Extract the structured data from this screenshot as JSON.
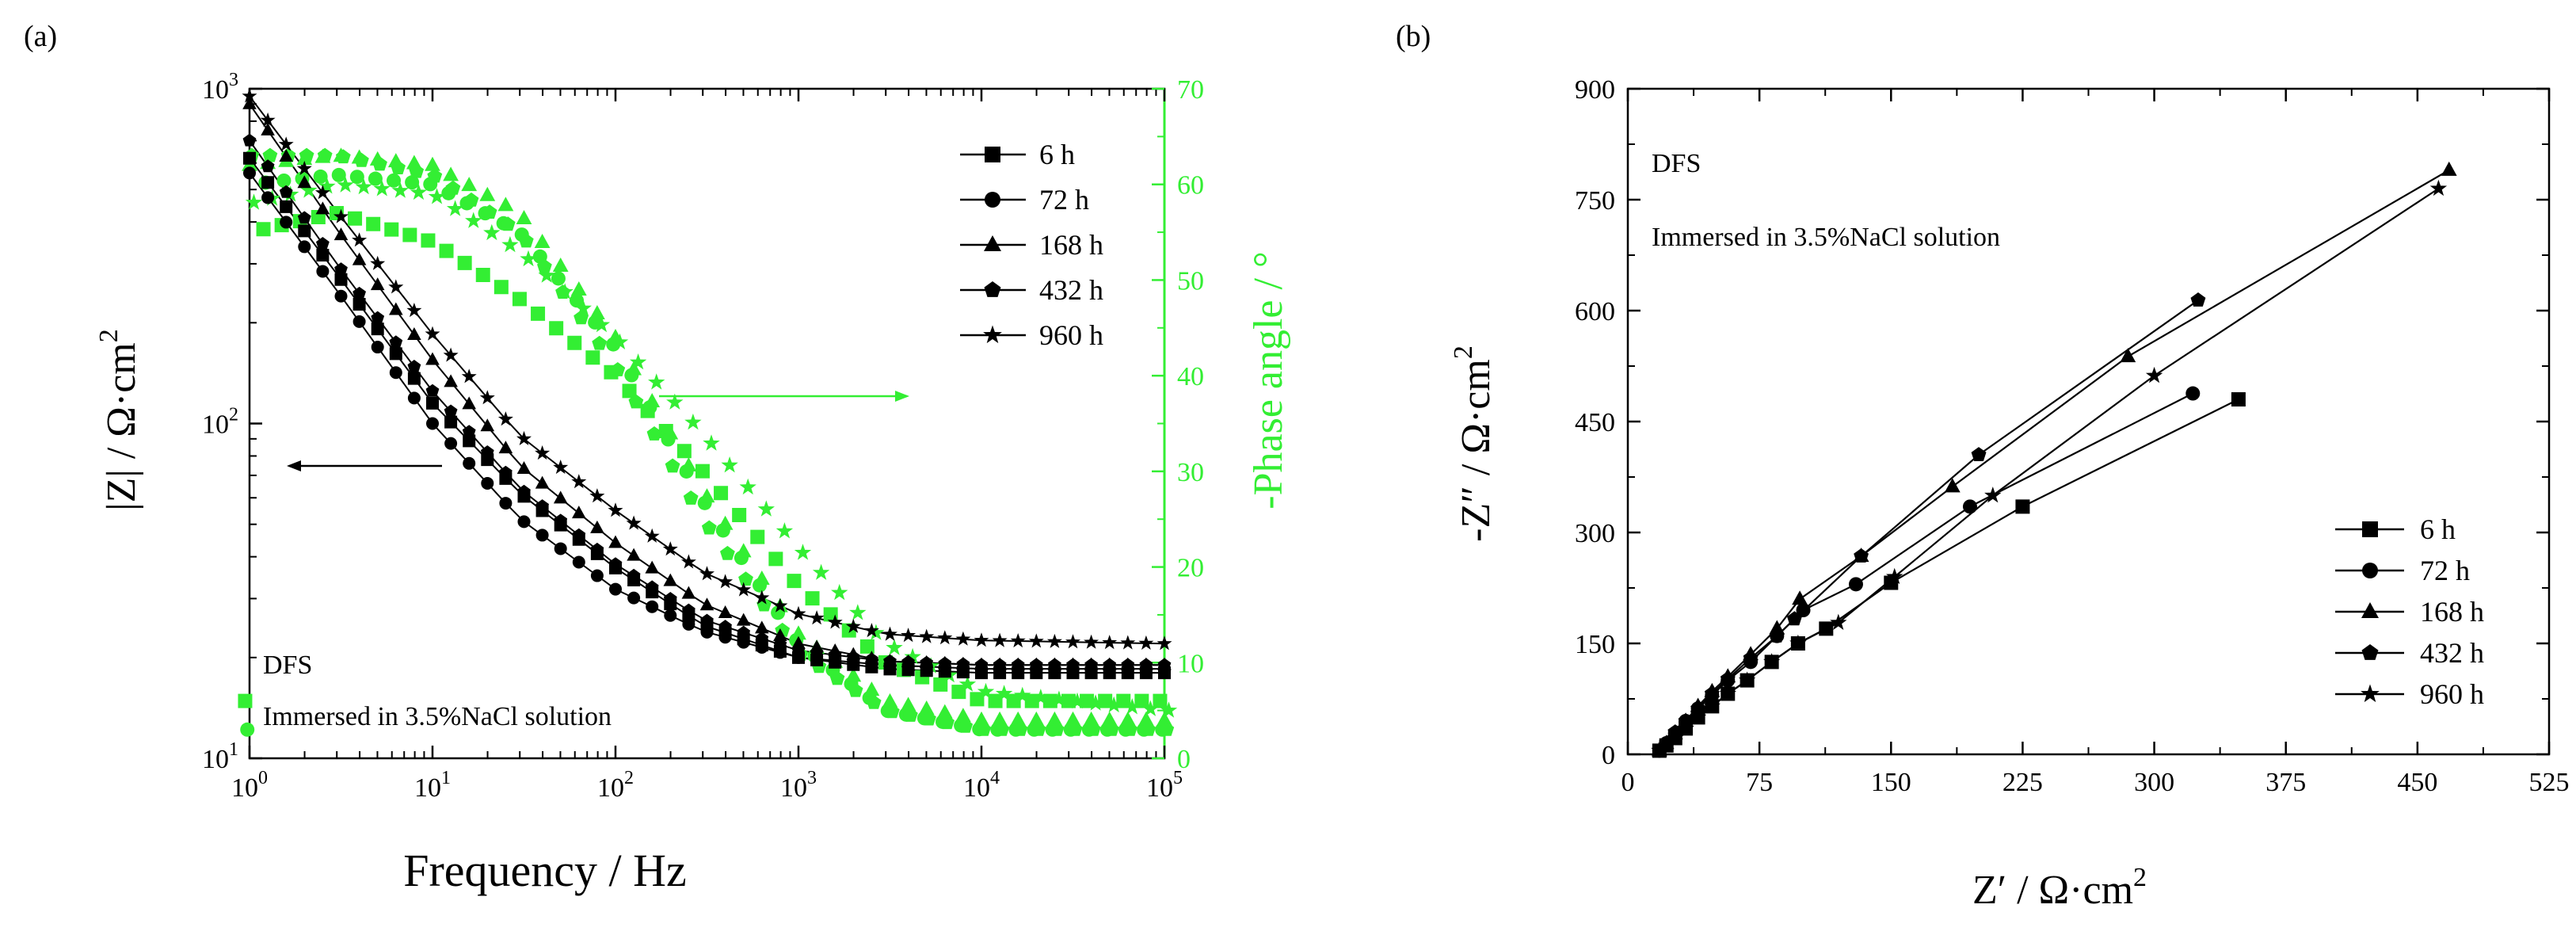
{
  "figure": {
    "background": "#ffffff"
  },
  "chart_data": [
    {
      "type": "scatter",
      "panel_label": "(a)",
      "xlabel": "Frequency / Hz",
      "ylabel_left": "|Z| / Ω·cm",
      "ylabel_left_sup": "2",
      "ylabel_right": "-Phase angle / °",
      "x_scale": "log",
      "xlim": [
        1,
        100000
      ],
      "x_ticks": [
        {
          "value": 1,
          "base": "10",
          "exp": "0"
        },
        {
          "value": 10,
          "base": "10",
          "exp": "1"
        },
        {
          "value": 100,
          "base": "10",
          "exp": "2"
        },
        {
          "value": 1000,
          "base": "10",
          "exp": "3"
        },
        {
          "value": 10000,
          "base": "10",
          "exp": "4"
        },
        {
          "value": 100000,
          "base": "10",
          "exp": "5"
        }
      ],
      "y_left_scale": "log",
      "y_left_lim": [
        10,
        1000
      ],
      "y_left_ticks": [
        {
          "value": 10,
          "base": "10",
          "exp": "1"
        },
        {
          "value": 100,
          "base": "10",
          "exp": "2"
        },
        {
          "value": 1000,
          "base": "10",
          "exp": "3"
        }
      ],
      "y_right_lim": [
        0,
        70
      ],
      "y_right_ticks": [
        "0",
        "10",
        "20",
        "30",
        "40",
        "50",
        "60",
        "70"
      ],
      "colors": {
        "modulus": "#000000",
        "phase": "#33ee33"
      },
      "annotations": [
        "DFS",
        "Immersed in 3.5%NaCl solution"
      ],
      "legend_position": "top-right",
      "grid": false,
      "series": [
        {
          "name": "6 h",
          "marker": "square",
          "modulus": [
            [
              1,
              620
            ],
            [
              3,
              280
            ],
            [
              10,
              115
            ],
            [
              30,
              62
            ],
            [
              100,
              37
            ],
            [
              300,
              25
            ],
            [
              1000,
              20
            ],
            [
              3000,
              18.5
            ],
            [
              10000,
              18
            ],
            [
              100000,
              18
            ]
          ],
          "phase": [
            [
              1,
              55
            ],
            [
              3,
              57
            ],
            [
              10,
              54
            ],
            [
              30,
              48
            ],
            [
              100,
              40
            ],
            [
              300,
              30
            ],
            [
              1000,
              18
            ],
            [
              3000,
              10
            ],
            [
              10000,
              6
            ],
            [
              100000,
              6
            ]
          ]
        },
        {
          "name": "72 h",
          "marker": "circle",
          "modulus": [
            [
              1,
              560
            ],
            [
              3,
              250
            ],
            [
              10,
              100
            ],
            [
              30,
              52
            ],
            [
              100,
              32
            ],
            [
              300,
              24
            ],
            [
              1000,
              20
            ],
            [
              3000,
              19
            ],
            [
              10000,
              18.5
            ],
            [
              100000,
              18.5
            ]
          ],
          "phase": [
            [
              1,
              60
            ],
            [
              3,
              61
            ],
            [
              10,
              60
            ],
            [
              30,
              55
            ],
            [
              100,
              43
            ],
            [
              300,
              27
            ],
            [
              1000,
              12
            ],
            [
              3000,
              5
            ],
            [
              10000,
              3
            ],
            [
              100000,
              3
            ]
          ]
        },
        {
          "name": "168 h",
          "marker": "triangle",
          "modulus": [
            [
              1,
              900
            ],
            [
              3,
              380
            ],
            [
              10,
              155
            ],
            [
              30,
              75
            ],
            [
              100,
              44
            ],
            [
              300,
              29
            ],
            [
              1000,
              22
            ],
            [
              3000,
              19.5
            ],
            [
              10000,
              19
            ],
            [
              100000,
              19
            ]
          ],
          "phase": [
            [
              1,
              62
            ],
            [
              3,
              63
            ],
            [
              10,
              62
            ],
            [
              30,
              57
            ],
            [
              100,
              44
            ],
            [
              300,
              28
            ],
            [
              1000,
              13
            ],
            [
              3000,
              6
            ],
            [
              10000,
              4
            ],
            [
              100000,
              4
            ]
          ]
        },
        {
          "name": "432 h",
          "marker": "pentagon",
          "modulus": [
            [
              1,
              700
            ],
            [
              3,
              300
            ],
            [
              10,
              125
            ],
            [
              30,
              64
            ],
            [
              100,
              38
            ],
            [
              300,
              26
            ],
            [
              1000,
              21
            ],
            [
              3000,
              19.5
            ],
            [
              10000,
              19
            ],
            [
              100000,
              19
            ]
          ],
          "phase": [
            [
              1,
              63
            ],
            [
              3,
              63
            ],
            [
              10,
              61
            ],
            [
              30,
              55
            ],
            [
              100,
              41
            ],
            [
              300,
              25
            ],
            [
              1000,
              11
            ],
            [
              3000,
              5
            ],
            [
              10000,
              3
            ],
            [
              100000,
              3
            ]
          ]
        },
        {
          "name": "960 h",
          "marker": "star",
          "modulus": [
            [
              1,
              950
            ],
            [
              3,
              430
            ],
            [
              10,
              185
            ],
            [
              30,
              92
            ],
            [
              100,
              55
            ],
            [
              300,
              36
            ],
            [
              1000,
              27
            ],
            [
              3000,
              23.5
            ],
            [
              10000,
              22.5
            ],
            [
              100000,
              22
            ]
          ],
          "phase": [
            [
              1,
              58
            ],
            [
              3,
              60
            ],
            [
              10,
              59
            ],
            [
              30,
              53
            ],
            [
              100,
              44
            ],
            [
              300,
              34
            ],
            [
              1000,
              22
            ],
            [
              3000,
              12
            ],
            [
              10000,
              7
            ],
            [
              100000,
              5
            ]
          ]
        }
      ]
    },
    {
      "type": "scatter",
      "panel_label": "(b)",
      "xlabel": "Z′ / Ω·cm",
      "xlabel_sup": "2",
      "ylabel": "-Z″ / Ω·cm",
      "ylabel_sup": "2",
      "xlim": [
        0,
        525
      ],
      "ylim": [
        0,
        900
      ],
      "x_ticks": [
        "0",
        "75",
        "150",
        "225",
        "300",
        "375",
        "450",
        "525"
      ],
      "y_ticks": [
        "0",
        "150",
        "300",
        "450",
        "600",
        "750",
        "900"
      ],
      "annotations": [
        "DFS",
        "Immersed in 3.5%NaCl solution"
      ],
      "legend_position": "bottom-right",
      "grid": false,
      "series": [
        {
          "name": "6 h",
          "marker": "square",
          "points": [
            [
              18,
              5
            ],
            [
              22,
              12
            ],
            [
              27,
              22
            ],
            [
              33,
              35
            ],
            [
              40,
              50
            ],
            [
              48,
              65
            ],
            [
              57,
              82
            ],
            [
              68,
              100
            ],
            [
              82,
              125
            ],
            [
              97,
              150
            ],
            [
              113,
              170
            ],
            [
              150,
              232
            ],
            [
              225,
              335
            ],
            [
              348,
              480
            ]
          ]
        },
        {
          "name": "72 h",
          "marker": "circle",
          "points": [
            [
              18,
              5
            ],
            [
              22,
              15
            ],
            [
              27,
              28
            ],
            [
              33,
              45
            ],
            [
              40,
              62
            ],
            [
              48,
              80
            ],
            [
              57,
              100
            ],
            [
              70,
              125
            ],
            [
              85,
              160
            ],
            [
              100,
              195
            ],
            [
              130,
              230
            ],
            [
              195,
              335
            ],
            [
              322,
              488
            ]
          ]
        },
        {
          "name": "168 h",
          "marker": "triangle",
          "points": [
            [
              18,
              5
            ],
            [
              22,
              15
            ],
            [
              27,
              28
            ],
            [
              33,
              45
            ],
            [
              40,
              65
            ],
            [
              48,
              85
            ],
            [
              57,
              105
            ],
            [
              70,
              135
            ],
            [
              85,
              170
            ],
            [
              98,
              210
            ],
            [
              133,
              268
            ],
            [
              185,
              362
            ],
            [
              285,
              538
            ],
            [
              468,
              790
            ]
          ]
        },
        {
          "name": "432 h",
          "marker": "pentagon",
          "points": [
            [
              18,
              5
            ],
            [
              22,
              15
            ],
            [
              27,
              30
            ],
            [
              33,
              45
            ],
            [
              40,
              62
            ],
            [
              48,
              82
            ],
            [
              57,
              102
            ],
            [
              70,
              130
            ],
            [
              85,
              160
            ],
            [
              95,
              183
            ],
            [
              133,
              268
            ],
            [
              200,
              405
            ],
            [
              325,
              614
            ]
          ]
        },
        {
          "name": "960 h",
          "marker": "star",
          "points": [
            [
              18,
              5
            ],
            [
              22,
              12
            ],
            [
              27,
              22
            ],
            [
              33,
              35
            ],
            [
              40,
              50
            ],
            [
              48,
              65
            ],
            [
              57,
              82
            ],
            [
              68,
              100
            ],
            [
              82,
              125
            ],
            [
              97,
              150
            ],
            [
              120,
              178
            ],
            [
              152,
              240
            ],
            [
              208,
              350
            ],
            [
              300,
              512
            ],
            [
              462,
              765
            ]
          ]
        }
      ]
    }
  ]
}
